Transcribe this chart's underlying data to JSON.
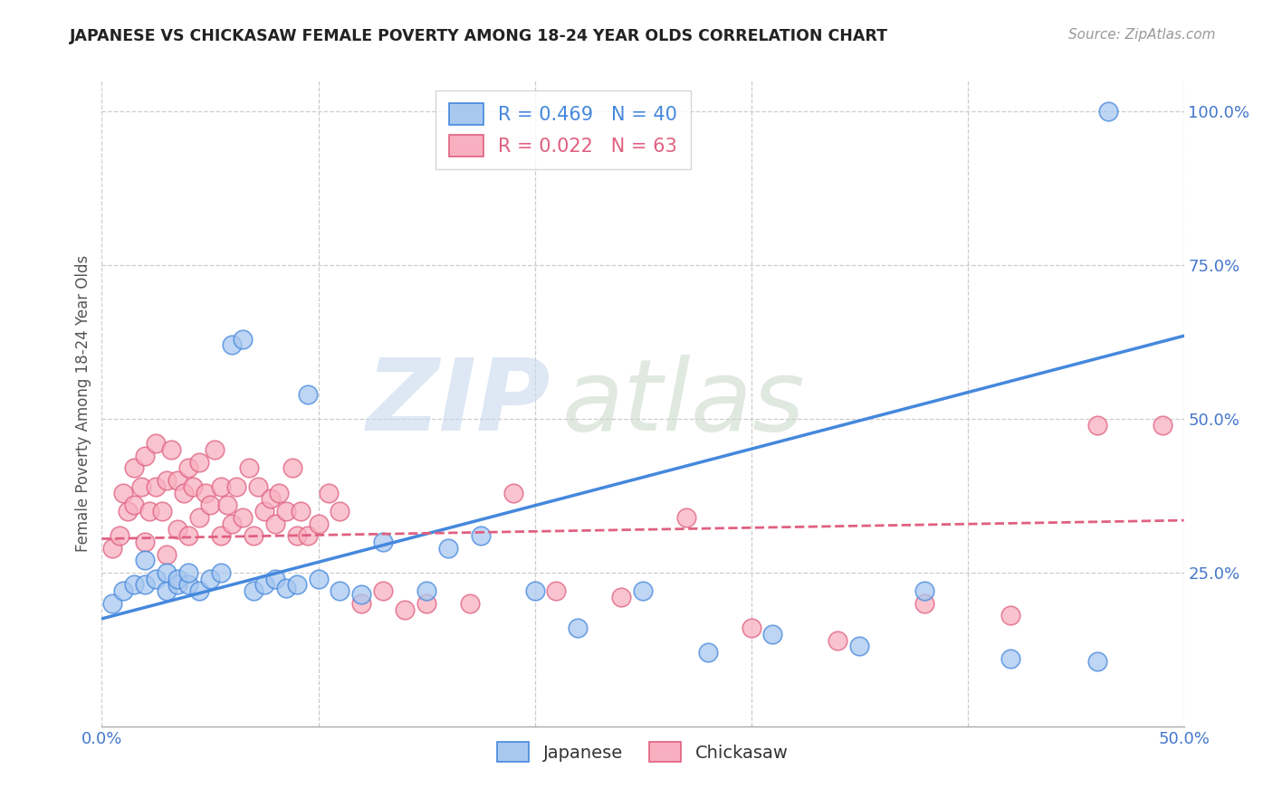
{
  "title": "JAPANESE VS CHICKASAW FEMALE POVERTY AMONG 18-24 YEAR OLDS CORRELATION CHART",
  "source": "Source: ZipAtlas.com",
  "ylabel": "Female Poverty Among 18-24 Year Olds",
  "xlim": [
    0.0,
    0.5
  ],
  "ylim": [
    0.0,
    1.05
  ],
  "japanese_color": "#a8c8f0",
  "chickasaw_color": "#f8b0c0",
  "japanese_line_color": "#4488dd",
  "chickasaw_line_color": "#e06080",
  "japanese_R": 0.469,
  "japanese_N": 40,
  "chickasaw_R": 0.022,
  "chickasaw_N": 63,
  "watermark_zip": "ZIP",
  "watermark_atlas": "atlas",
  "grid_color": "#cccccc",
  "background_color": "#ffffff",
  "jap_line_x0": 0.0,
  "jap_line_y0": 0.175,
  "jap_line_x1": 0.5,
  "jap_line_y1": 0.635,
  "chick_line_x0": 0.0,
  "chick_line_y0": 0.305,
  "chick_line_x1": 0.5,
  "chick_line_y1": 0.335,
  "japanese_x": [
    0.005,
    0.01,
    0.015,
    0.02,
    0.02,
    0.025,
    0.03,
    0.03,
    0.035,
    0.035,
    0.04,
    0.04,
    0.045,
    0.05,
    0.055,
    0.06,
    0.065,
    0.07,
    0.075,
    0.08,
    0.085,
    0.09,
    0.095,
    0.1,
    0.11,
    0.12,
    0.13,
    0.15,
    0.16,
    0.175,
    0.2,
    0.22,
    0.25,
    0.28,
    0.31,
    0.35,
    0.38,
    0.42,
    0.46,
    0.465
  ],
  "japanese_y": [
    0.2,
    0.22,
    0.23,
    0.23,
    0.27,
    0.24,
    0.22,
    0.25,
    0.23,
    0.24,
    0.23,
    0.25,
    0.22,
    0.24,
    0.25,
    0.62,
    0.63,
    0.22,
    0.23,
    0.24,
    0.225,
    0.23,
    0.54,
    0.24,
    0.22,
    0.215,
    0.3,
    0.22,
    0.29,
    0.31,
    0.22,
    0.16,
    0.22,
    0.12,
    0.15,
    0.13,
    0.22,
    0.11,
    0.105,
    1.0
  ],
  "chickasaw_x": [
    0.005,
    0.008,
    0.01,
    0.012,
    0.015,
    0.015,
    0.018,
    0.02,
    0.02,
    0.022,
    0.025,
    0.025,
    0.028,
    0.03,
    0.03,
    0.032,
    0.035,
    0.035,
    0.038,
    0.04,
    0.04,
    0.042,
    0.045,
    0.045,
    0.048,
    0.05,
    0.052,
    0.055,
    0.055,
    0.058,
    0.06,
    0.062,
    0.065,
    0.068,
    0.07,
    0.072,
    0.075,
    0.078,
    0.08,
    0.082,
    0.085,
    0.088,
    0.09,
    0.092,
    0.095,
    0.1,
    0.105,
    0.11,
    0.12,
    0.13,
    0.14,
    0.15,
    0.17,
    0.19,
    0.21,
    0.24,
    0.27,
    0.3,
    0.34,
    0.38,
    0.42,
    0.46,
    0.49
  ],
  "chickasaw_y": [
    0.29,
    0.31,
    0.38,
    0.35,
    0.36,
    0.42,
    0.39,
    0.3,
    0.44,
    0.35,
    0.39,
    0.46,
    0.35,
    0.28,
    0.4,
    0.45,
    0.32,
    0.4,
    0.38,
    0.31,
    0.42,
    0.39,
    0.34,
    0.43,
    0.38,
    0.36,
    0.45,
    0.31,
    0.39,
    0.36,
    0.33,
    0.39,
    0.34,
    0.42,
    0.31,
    0.39,
    0.35,
    0.37,
    0.33,
    0.38,
    0.35,
    0.42,
    0.31,
    0.35,
    0.31,
    0.33,
    0.38,
    0.35,
    0.2,
    0.22,
    0.19,
    0.2,
    0.2,
    0.38,
    0.22,
    0.21,
    0.34,
    0.16,
    0.14,
    0.2,
    0.18,
    0.49,
    0.49
  ]
}
